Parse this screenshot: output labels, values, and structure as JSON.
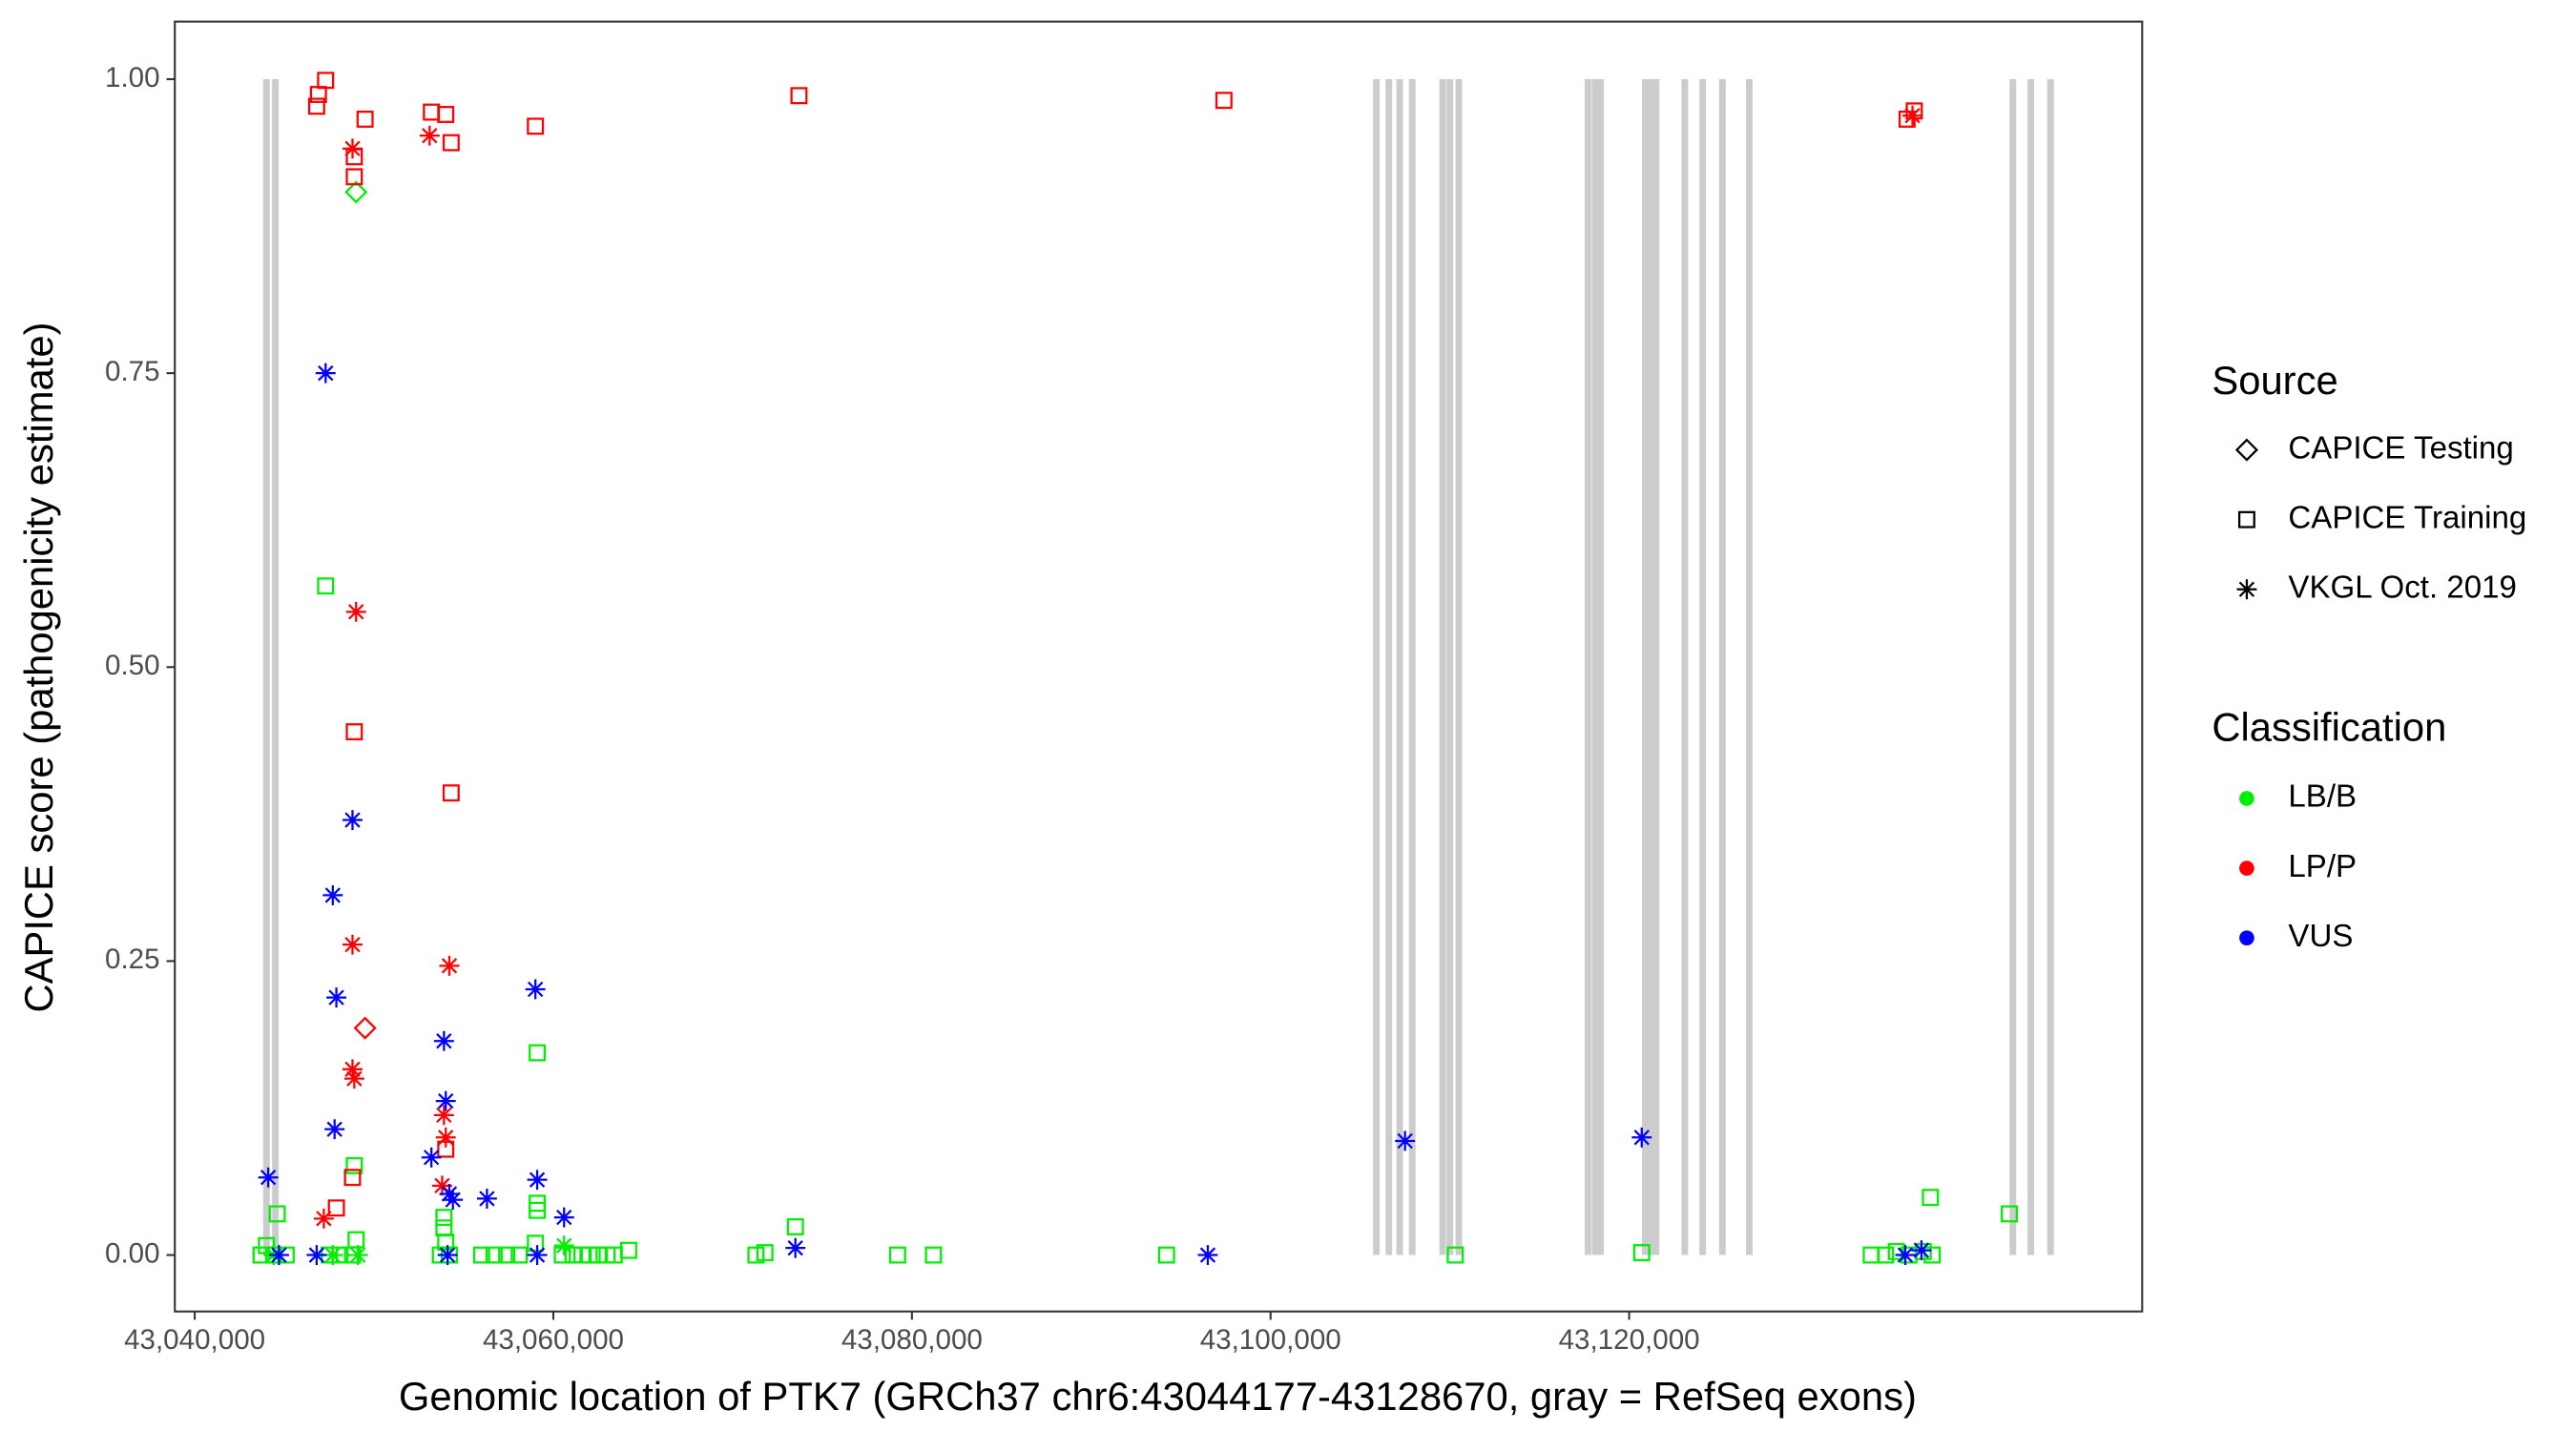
{
  "chart_data": {
    "type": "scatter",
    "x_label": "Genomic location of PTK7 (GRCh37 chr6:43044177-43128670, gray = RefSeq exons)",
    "y_label": "CAPICE score (pathogenicity estimate)",
    "xlim": [
      43038890,
      43148611
    ],
    "ylim": [
      -0.048,
      1.049
    ],
    "xticks": [
      {
        "value": 43040000,
        "label": "43,040,000"
      },
      {
        "value": 43060000,
        "label": "43,060,000"
      },
      {
        "value": 43080000,
        "label": "43,080,000"
      },
      {
        "value": 43100000,
        "label": "43,100,000"
      },
      {
        "value": 43120000,
        "label": "43,120,000"
      }
    ],
    "yticks": [
      {
        "value": 0,
        "label": "0.00"
      },
      {
        "value": 0.25,
        "label": "0.25"
      },
      {
        "value": 0.5,
        "label": "0.50"
      },
      {
        "value": 0.75,
        "label": "0.75"
      },
      {
        "value": 1,
        "label": "1.00"
      }
    ],
    "exon_color": "#cccccc",
    "exons": [
      43044000,
      43044500,
      43105900,
      43106600,
      43107200,
      43107900,
      43109600,
      43110000,
      43110500,
      43117700,
      43118100,
      43118400,
      43120900,
      43121100,
      43121300,
      43121500,
      43123100,
      43124100,
      43125200,
      43126700,
      43141400,
      43142400,
      43143500
    ],
    "source_title": "Source",
    "sources": [
      {
        "name": "CAPICE Testing",
        "shape": "diamond"
      },
      {
        "name": "CAPICE Training",
        "shape": "square"
      },
      {
        "name": "VKGL Oct. 2019",
        "shape": "asterisk"
      }
    ],
    "class_title": "Classification",
    "classes": [
      {
        "name": "LB/B",
        "color": "#00ee00",
        "by_source": [
          {
            "x": [
              43049000
            ],
            "y": [
              0.904
            ]
          },
          {
            "x": [
              43047300,
              43059100,
              43048900,
              43059100,
              43059100,
              43053900,
              43053900,
              43054000,
              43073500,
              43136800,
              43141200,
              43044600,
              43049000,
              43059000,
              43044000,
              43043700,
              43044400,
              43045100,
              43047500,
              43048100,
              43048800,
              43053700,
              43054200,
              43056000,
              43056700,
              43057400,
              43058100,
              43060500,
              43061100,
              43061600,
              43062000,
              43062500,
              43063000,
              43063400,
              43064200,
              43071300,
              43071800,
              43079200,
              43081200,
              43094200,
              43110300,
              43120700,
              43133500,
              43134300,
              43134900,
              43135600,
              43136400,
              43136900
            ],
            "y": [
              0.569,
              0.172,
              0.076,
              0.044,
              0.038,
              0.032,
              0.023,
              0.011,
              0.024,
              0.049,
              0.035,
              0.035,
              0.013,
              0.01,
              0.008,
              0,
              0,
              0,
              0,
              0,
              0,
              0,
              0,
              0,
              0,
              0,
              0,
              0,
              0,
              0,
              0,
              0,
              0,
              0,
              0.004,
              0,
              0.002,
              0,
              0,
              0,
              0,
              0.002,
              0,
              0,
              0.003,
              0,
              0.003,
              0
            ]
          },
          {
            "x": [
              43044400,
              43047700,
              43049100,
              43060600
            ],
            "y": [
              0,
              0,
              0,
              0.008
            ]
          }
        ]
      },
      {
        "name": "LP/P",
        "color": "#ff0000",
        "by_source": [
          {
            "x": [
              43049500
            ],
            "y": [
              0.193
            ]
          },
          {
            "x": [
              43046800,
              43046900,
              43047300,
              43049500,
              43048900,
              43048900,
              43053200,
              43054000,
              43054300,
              43059000,
              43073700,
              43097400,
              43135500,
              43135900,
              43048900,
              43054300,
              43054000,
              43048800,
              43047900
            ],
            "y": [
              0.977,
              0.987,
              0.999,
              0.966,
              0.934,
              0.917,
              0.972,
              0.97,
              0.946,
              0.96,
              0.986,
              0.982,
              0.966,
              0.973,
              0.445,
              0.393,
              0.09,
              0.066,
              0.04
            ]
          },
          {
            "x": [
              43048800,
              43053100,
              43135800,
              43049000,
              43048800,
              43054200,
              43048800,
              43048900,
              43053900,
              43054000,
              43053800,
              43047200
            ],
            "y": [
              0.941,
              0.952,
              0.969,
              0.547,
              0.264,
              0.246,
              0.158,
              0.15,
              0.119,
              0.1,
              0.059,
              0.031
            ]
          }
        ]
      },
      {
        "name": "VUS",
        "color": "#0000ff",
        "by_source": [
          {
            "x": [],
            "y": []
          },
          {
            "x": [],
            "y": []
          },
          {
            "x": [
              43047300,
              43048800,
              43047700,
              43047900,
              43047800,
              43053900,
              43054000,
              43059000,
              43059100,
              43044100,
              43053200,
              43054200,
              43054400,
              43056300,
              43060600,
              43107500,
              43120700,
              43073500,
              43096500,
              43046800,
              43044700,
              43054100,
              43059100,
              43135400,
              43136300
            ],
            "y": [
              0.75,
              0.37,
              0.306,
              0.219,
              0.107,
              0.182,
              0.131,
              0.226,
              0.064,
              0.066,
              0.083,
              0.052,
              0.047,
              0.048,
              0.032,
              0.097,
              0.1,
              0.006,
              0,
              0,
              0,
              0,
              0,
              0,
              0.004
            ]
          }
        ]
      }
    ]
  }
}
